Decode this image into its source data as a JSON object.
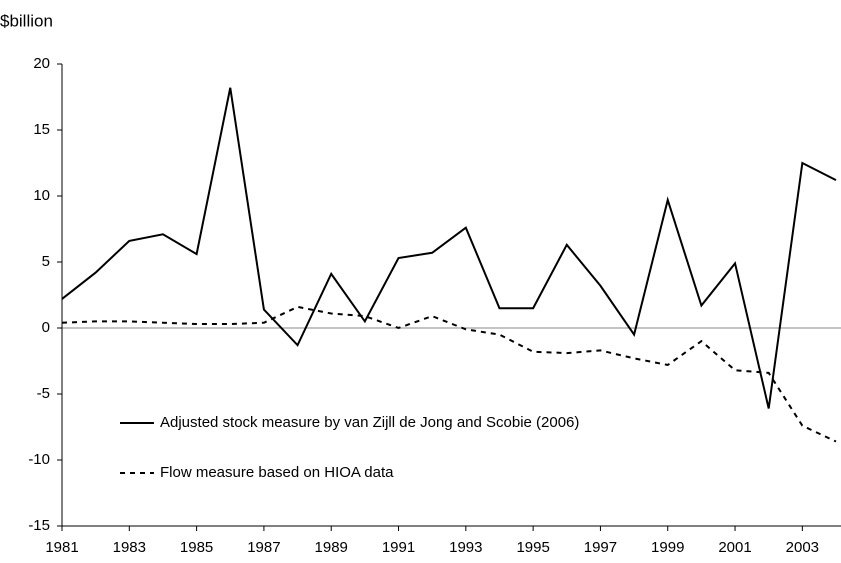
{
  "chart_data": {
    "type": "line",
    "ylabel": "$billion",
    "x": [
      1981,
      1982,
      1983,
      1984,
      1985,
      1986,
      1987,
      1988,
      1989,
      1990,
      1991,
      1992,
      1993,
      1994,
      1995,
      1996,
      1997,
      1998,
      1999,
      2000,
      2001,
      2002,
      2003,
      2004
    ],
    "series": [
      {
        "name": "Adjusted stock measure by van Zijll de Jong and Scobie (2006)",
        "color": "#000000",
        "dash": "solid",
        "values": [
          2.2,
          4.2,
          6.6,
          7.1,
          5.6,
          18.2,
          1.4,
          -1.3,
          4.1,
          0.5,
          5.3,
          5.7,
          7.6,
          1.5,
          1.5,
          6.3,
          3.2,
          -0.5,
          9.7,
          1.7,
          4.9,
          -6.1,
          12.5,
          11.2
        ]
      },
      {
        "name": "Flow measure based on HIOA data",
        "color": "#000000",
        "dash": "dashed",
        "values": [
          0.4,
          0.5,
          0.5,
          0.4,
          0.3,
          0.3,
          0.4,
          1.6,
          1.1,
          0.9,
          0.0,
          0.9,
          -0.1,
          -0.5,
          -1.8,
          -1.9,
          -1.7,
          -2.3,
          -2.8,
          -1.0,
          -3.2,
          -3.4,
          -7.4,
          -8.6
        ]
      }
    ],
    "xlim": [
      1981,
      2004
    ],
    "xticks": [
      1981,
      1983,
      1985,
      1987,
      1989,
      1991,
      1993,
      1995,
      1997,
      1999,
      2001,
      2003
    ],
    "ylim": [
      -15,
      20
    ],
    "yticks": [
      -15,
      -10,
      -5,
      0,
      5,
      10,
      15,
      20
    ],
    "zero_line": true,
    "legend": "lower left"
  }
}
